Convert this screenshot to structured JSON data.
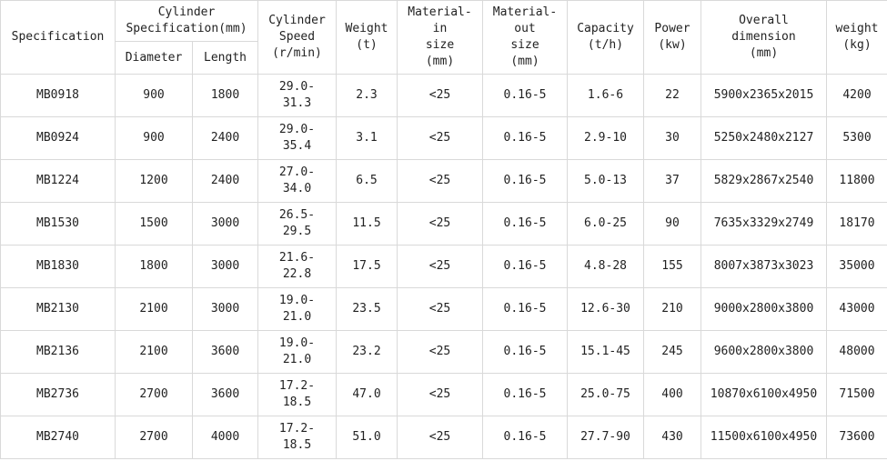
{
  "headers": {
    "specification": "Specification",
    "cylinder_spec": "Cylinder\nSpecification(mm)",
    "diameter": "Diameter",
    "length": "Length",
    "speed": "Cylinder\nSpeed\n(r/min)",
    "weight_t": "Weight\n(t)",
    "material_in": "Material-\nin\nsize\n(mm)",
    "material_out": "Material-\nout\nsize\n(mm)",
    "capacity": "Capacity\n(t/h)",
    "power": "Power\n(kw)",
    "overall": "Overall\ndimension\n(mm)",
    "weight_kg": "weight\n(kg)"
  },
  "rows": [
    {
      "model": "MB0918",
      "diameter": "900",
      "length": "1800",
      "speed": "29.0-\n31.3",
      "weight_t": "2.3",
      "in_size": "<25",
      "out_size": "0.16-5",
      "capacity": "1.6-6",
      "power": "22",
      "dimension": "5900x2365x2015",
      "weight_kg": "4200"
    },
    {
      "model": "MB0924",
      "diameter": "900",
      "length": "2400",
      "speed": "29.0-\n35.4",
      "weight_t": "3.1",
      "in_size": "<25",
      "out_size": "0.16-5",
      "capacity": "2.9-10",
      "power": "30",
      "dimension": "5250x2480x2127",
      "weight_kg": "5300"
    },
    {
      "model": "MB1224",
      "diameter": "1200",
      "length": "2400",
      "speed": "27.0-\n34.0",
      "weight_t": "6.5",
      "in_size": "<25",
      "out_size": "0.16-5",
      "capacity": "5.0-13",
      "power": "37",
      "dimension": "5829x2867x2540",
      "weight_kg": "11800"
    },
    {
      "model": "MB1530",
      "diameter": "1500",
      "length": "3000",
      "speed": "26.5-\n29.5",
      "weight_t": "11.5",
      "in_size": "<25",
      "out_size": "0.16-5",
      "capacity": "6.0-25",
      "power": "90",
      "dimension": "7635x3329x2749",
      "weight_kg": "18170"
    },
    {
      "model": "MB1830",
      "diameter": "1800",
      "length": "3000",
      "speed": "21.6-\n22.8",
      "weight_t": "17.5",
      "in_size": "<25",
      "out_size": "0.16-5",
      "capacity": "4.8-28",
      "power": "155",
      "dimension": "8007x3873x3023",
      "weight_kg": "35000"
    },
    {
      "model": "MB2130",
      "diameter": "2100",
      "length": "3000",
      "speed": "19.0-\n21.0",
      "weight_t": "23.5",
      "in_size": "<25",
      "out_size": "0.16-5",
      "capacity": "12.6-30",
      "power": "210",
      "dimension": "9000x2800x3800",
      "weight_kg": "43000"
    },
    {
      "model": "MB2136",
      "diameter": "2100",
      "length": "3600",
      "speed": "19.0-\n21.0",
      "weight_t": "23.2",
      "in_size": "<25",
      "out_size": "0.16-5",
      "capacity": "15.1-45",
      "power": "245",
      "dimension": "9600x2800x3800",
      "weight_kg": "48000"
    },
    {
      "model": "MB2736",
      "diameter": "2700",
      "length": "3600",
      "speed": "17.2-\n18.5",
      "weight_t": "47.0",
      "in_size": "<25",
      "out_size": "0.16-5",
      "capacity": "25.0-75",
      "power": "400",
      "dimension": "10870x6100x4950",
      "weight_kg": "71500"
    },
    {
      "model": "MB2740",
      "diameter": "2700",
      "length": "4000",
      "speed": "17.2-\n18.5",
      "weight_t": "51.0",
      "in_size": "<25",
      "out_size": "0.16-5",
      "capacity": "27.7-90",
      "power": "430",
      "dimension": "11500x6100x4950",
      "weight_kg": "73600"
    }
  ]
}
